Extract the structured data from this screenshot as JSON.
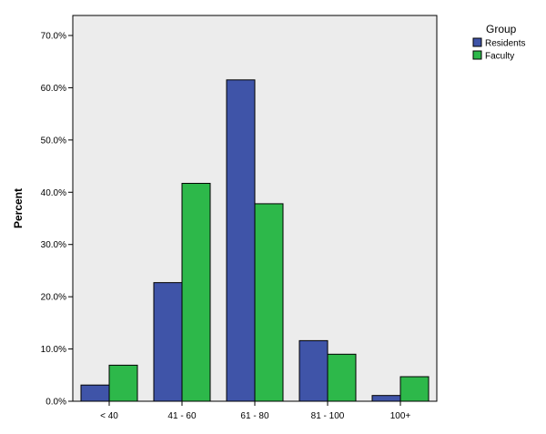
{
  "chart_data": {
    "type": "bar",
    "title": "",
    "xlabel": "",
    "ylabel": "Percent",
    "ylim": [
      0,
      70
    ],
    "y_tick_labels": [
      "0.0%",
      "10.0%",
      "20.0%",
      "30.0%",
      "40.0%",
      "50.0%",
      "60.0%",
      "70.0%"
    ],
    "categories": [
      "< 40",
      "41 - 60",
      "61 - 80",
      "81 - 100",
      "100+"
    ],
    "series": [
      {
        "name": "Residents",
        "color": "#3f54a8",
        "values": [
          3.1,
          22.7,
          61.5,
          11.6,
          1.1
        ]
      },
      {
        "name": "Faculty",
        "color": "#2db84a",
        "values": [
          6.9,
          41.7,
          37.8,
          9.0,
          4.7
        ]
      }
    ],
    "legend": {
      "title": "Group",
      "placement": "top-right"
    },
    "plot_background": "#ececec",
    "grid": false
  }
}
